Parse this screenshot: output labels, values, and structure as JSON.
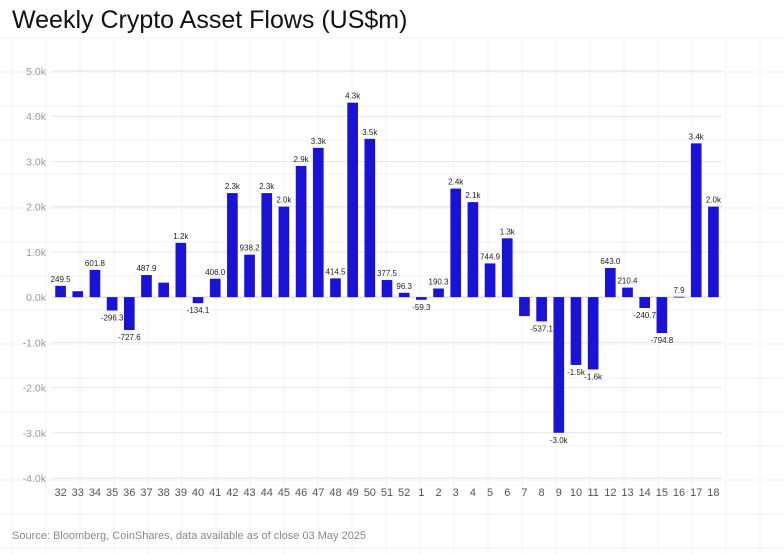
{
  "chart_data": {
    "type": "bar",
    "title": "Weekly Crypto Asset Flows (US$m)",
    "source": "Source: Bloomberg, CoinShares, data available as of close 03 May 2025",
    "ylim": [
      -4000,
      5000
    ],
    "y_ticks": [
      "5.0k",
      "4.0k",
      "3.0k",
      "2.0k",
      "1.0k",
      "0.0k",
      "-1.0k",
      "-2.0k",
      "-3.0k",
      "-4.0k"
    ],
    "y_tick_values": [
      5000,
      4000,
      3000,
      2000,
      1000,
      0,
      -1000,
      -2000,
      -3000,
      -4000
    ],
    "grid": true,
    "bar_color": "#1a12d6",
    "highlight_color": "#f5c518",
    "highlight_index": 43,
    "categories": [
      "32",
      "33",
      "34",
      "35",
      "36",
      "37",
      "38",
      "39",
      "40",
      "41",
      "42",
      "43",
      "44",
      "45",
      "46",
      "47",
      "48",
      "49",
      "50",
      "51",
      "52",
      "1",
      "2",
      "3",
      "4",
      "5",
      "6",
      "7",
      "8",
      "9",
      "10",
      "11",
      "12",
      "13",
      "14",
      "15",
      "16",
      "17",
      "18"
    ],
    "values": [
      249.5,
      130,
      601.8,
      -296.3,
      -727.6,
      487.9,
      320,
      1200,
      -134.1,
      406.0,
      2300,
      938.2,
      2300,
      2000,
      2900,
      3300,
      414.5,
      4300,
      3500,
      377.5,
      96.3,
      -59.3,
      190.3,
      2400,
      2100,
      744.9,
      1300,
      -420,
      -537.1,
      -3000,
      -1500,
      -1600,
      643.0,
      210.4,
      -240.7,
      -794.8,
      7.9,
      3400,
      2000
    ],
    "labels": [
      "249.5",
      "",
      "601.8",
      "-296.3",
      "-727.6",
      "487.9",
      "",
      "1.2k",
      "-134.1",
      "406.0",
      "2.3k",
      "938.2",
      "2.3k",
      "2.0k",
      "2.9k",
      "3.3k",
      "414.5",
      "4.3k",
      "3.5k",
      "377.5",
      "96.3",
      "-59.3",
      "190.3",
      "2.4k",
      "2.1k",
      "744.9",
      "1.3k",
      "",
      "-537.1",
      "-3.0k",
      "-1.5k",
      "-1.6k",
      "643.0",
      "210.4",
      "-240.7",
      "-794.8",
      "7.9",
      "3.4k",
      "2.0k"
    ]
  }
}
